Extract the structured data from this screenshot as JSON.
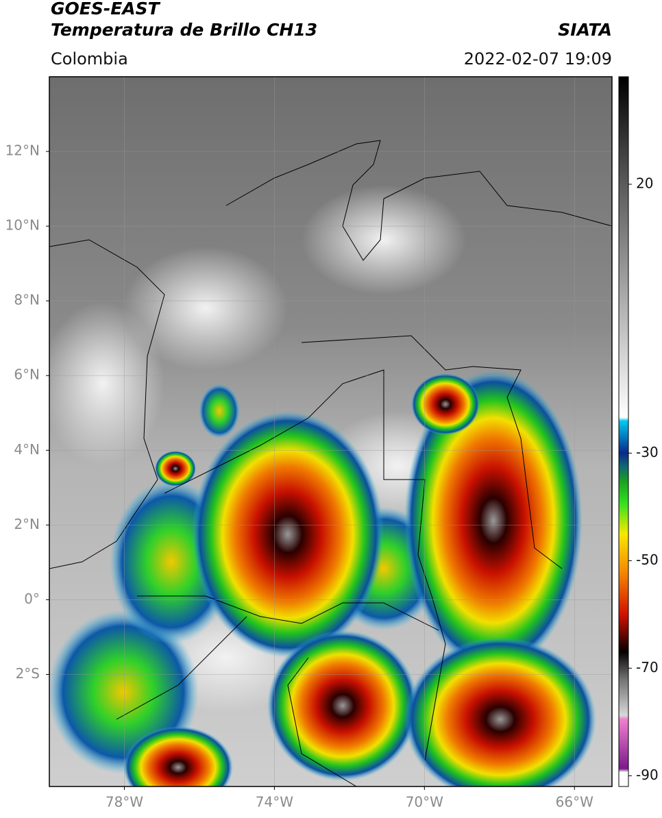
{
  "header": {
    "title": "GOES-EAST",
    "subtitle": "Temperatura de Brillo CH13",
    "source": "SIATA",
    "region": "Colombia",
    "datetime": "2022-02-07 19:09"
  },
  "map": {
    "xlim": [
      -80,
      -65
    ],
    "ylim": [
      -5,
      14
    ],
    "xticks": [
      {
        "value": -78,
        "label": "78°W"
      },
      {
        "value": -74,
        "label": "74°W"
      },
      {
        "value": -70,
        "label": "70°W"
      },
      {
        "value": -66,
        "label": "66°W"
      }
    ],
    "yticks": [
      {
        "value": 12,
        "label": "12°N"
      },
      {
        "value": 10,
        "label": "10°N"
      },
      {
        "value": 8,
        "label": "8°N"
      },
      {
        "value": 6,
        "label": "6°N"
      },
      {
        "value": 4,
        "label": "4°N"
      },
      {
        "value": 2,
        "label": "2°N"
      },
      {
        "value": 0,
        "label": "0°"
      },
      {
        "value": -2,
        "label": "2°S"
      }
    ],
    "grid": true
  },
  "colorbar": {
    "lim": [
      -92,
      40
    ],
    "ticks": [
      20,
      -30,
      -50,
      -70,
      -90
    ]
  }
}
